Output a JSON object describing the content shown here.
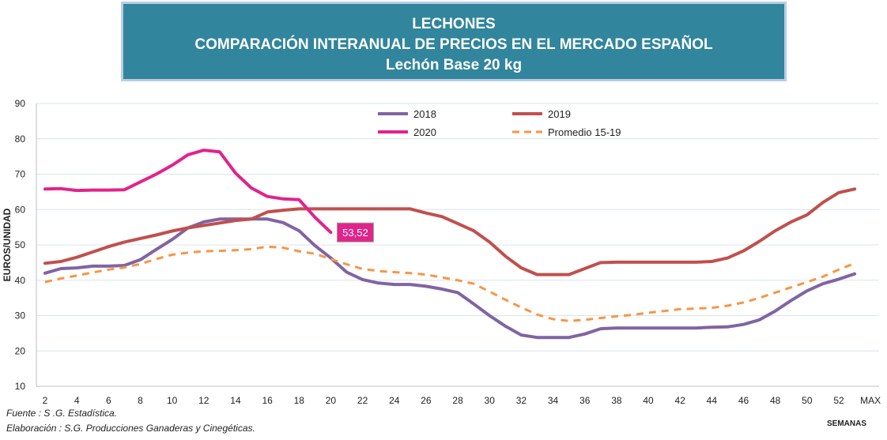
{
  "header": {
    "line1": "LECHONES",
    "line2": "COMPARACIÓN INTERANUAL DE PRECIOS EN EL MERCADO ESPAÑOL",
    "line3": "Lechón Base 20 kg"
  },
  "footer": {
    "source": "Fuente :  S .G. Estadística.",
    "elaboration": "Elaboración : S.G. Producciones Ganaderas y Cinegéticas.",
    "xaxis_title": "SEMANAS"
  },
  "chart_data": {
    "type": "line",
    "ylabel": "EUROS/UNIDAD",
    "xlabel": "SEMANAS",
    "ylim": [
      10,
      90
    ],
    "yticks": [
      10,
      20,
      30,
      40,
      50,
      60,
      70,
      80,
      90
    ],
    "xticks": [
      "2",
      "4",
      "6",
      "8",
      "10",
      "12",
      "14",
      "16",
      "18",
      "20",
      "22",
      "24",
      "26",
      "28",
      "30",
      "32",
      "34",
      "36",
      "38",
      "40",
      "42",
      "44",
      "46",
      "48",
      "50",
      "52",
      "MAX"
    ],
    "grid": true,
    "legend_position": "top",
    "series": [
      {
        "name": "2018",
        "color": "#8064a2",
        "dashed": false,
        "x": [
          2,
          3,
          4,
          5,
          6,
          7,
          8,
          9,
          10,
          11,
          12,
          13,
          14,
          15,
          16,
          17,
          18,
          19,
          20,
          21,
          22,
          23,
          24,
          25,
          26,
          27,
          28,
          29,
          30,
          31,
          32,
          33,
          34,
          35,
          36,
          37,
          38,
          39,
          40,
          41,
          42,
          43,
          44,
          45,
          46,
          47,
          48,
          49,
          50,
          51,
          52,
          53
        ],
        "values": [
          42,
          43.3,
          43.5,
          44,
          44,
          44.2,
          45.8,
          48.7,
          51.5,
          54.8,
          56.5,
          57.3,
          57.3,
          57.3,
          57.3,
          56.3,
          54,
          49.8,
          46.3,
          42.3,
          40.2,
          39.2,
          38.8,
          38.8,
          38.3,
          37.5,
          36.5,
          33.3,
          30,
          27,
          24.5,
          23.8,
          23.8,
          23.8,
          24.8,
          26.3,
          26.5,
          26.5,
          26.5,
          26.5,
          26.5,
          26.5,
          26.7,
          26.8,
          27.5,
          28.8,
          31.3,
          34.3,
          37,
          39,
          40.3,
          41.8
        ]
      },
      {
        "name": "2019",
        "color": "#c0504d",
        "dashed": false,
        "x": [
          2,
          3,
          4,
          5,
          6,
          7,
          8,
          9,
          10,
          11,
          12,
          13,
          14,
          15,
          16,
          17,
          18,
          19,
          20,
          21,
          22,
          23,
          24,
          25,
          26,
          27,
          28,
          29,
          30,
          31,
          32,
          33,
          34,
          35,
          36,
          37,
          38,
          39,
          40,
          41,
          42,
          43,
          44,
          45,
          46,
          47,
          48,
          49,
          50,
          51,
          52,
          53
        ],
        "values": [
          44.8,
          45.3,
          46.5,
          48,
          49.5,
          50.8,
          51.8,
          52.8,
          53.9,
          54.8,
          55.5,
          56.2,
          56.9,
          57.3,
          59.3,
          59.8,
          60.2,
          60.2,
          60.2,
          60.2,
          60.2,
          60.2,
          60.2,
          60.2,
          59,
          58,
          56,
          54,
          50.8,
          46.8,
          43.5,
          41.6,
          41.6,
          41.6,
          43.3,
          45,
          45.1,
          45.1,
          45.1,
          45.1,
          45.1,
          45.1,
          45.3,
          46.3,
          48.3,
          51,
          54,
          56.5,
          58.5,
          62,
          64.8,
          65.8
        ]
      },
      {
        "name": "2020",
        "color": "#e0248c",
        "dashed": false,
        "x": [
          2,
          3,
          4,
          5,
          6,
          7,
          8,
          9,
          10,
          11,
          12,
          13,
          14,
          15,
          16,
          17,
          18,
          19,
          20
        ],
        "values": [
          65.8,
          65.9,
          65.4,
          65.5,
          65.5,
          65.6,
          67.8,
          70,
          72.5,
          75.5,
          76.8,
          76.3,
          70.3,
          66.1,
          63.7,
          63,
          62.8,
          57.8,
          53.52
        ]
      },
      {
        "name": "Promedio 15-19",
        "color": "#f79646",
        "dashed": true,
        "x": [
          2,
          3,
          4,
          5,
          6,
          7,
          8,
          9,
          10,
          11,
          12,
          13,
          14,
          15,
          16,
          17,
          18,
          19,
          20,
          21,
          22,
          23,
          24,
          25,
          26,
          27,
          28,
          29,
          30,
          31,
          32,
          33,
          34,
          35,
          36,
          37,
          38,
          39,
          40,
          41,
          42,
          43,
          44,
          45,
          46,
          47,
          48,
          49,
          50,
          51,
          52,
          53
        ],
        "values": [
          39.5,
          40.5,
          41.3,
          42.2,
          43,
          43.6,
          44.6,
          46,
          47.2,
          47.8,
          48.2,
          48.3,
          48.5,
          48.8,
          49.5,
          49.2,
          48.2,
          47.5,
          46,
          44.5,
          43.2,
          42.6,
          42.3,
          42,
          41.6,
          40.8,
          40,
          39,
          36.8,
          34.5,
          32.3,
          30.3,
          29,
          28.5,
          28.8,
          29.3,
          29.8,
          30.2,
          30.8,
          31.3,
          31.8,
          32,
          32.2,
          32.8,
          33.7,
          35,
          36.5,
          38,
          39.5,
          41,
          43,
          44.8
        ]
      }
    ],
    "annotation": {
      "text": "53,52",
      "x": 20,
      "y": 53.52,
      "color": "#e0248c"
    }
  }
}
